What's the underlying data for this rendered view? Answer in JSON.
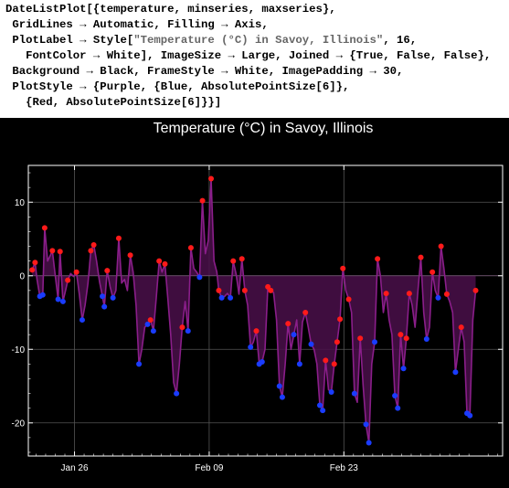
{
  "code": {
    "lines": [
      [
        {
          "t": "DateListPlot[{temperature, minseries, maxseries},"
        }
      ],
      [
        {
          "t": " GridLines → Automatic, Filling → Axis,"
        }
      ],
      [
        {
          "t": " PlotLabel → Style["
        },
        {
          "t": "\"Temperature (°C) in Savoy, Illinois\"",
          "s": true
        },
        {
          "t": ", 16,"
        }
      ],
      [
        {
          "t": "   FontColor → White], ImageSize → Large, Joined → {True, False, False},"
        }
      ],
      [
        {
          "t": " Background → Black, FrameStyle → White, ImagePadding → 30,"
        }
      ],
      [
        {
          "t": " PlotStyle → {Purple, {Blue, AbsolutePointSize[6]},"
        }
      ],
      [
        {
          "t": "   {Red, AbsolutePointSize[6]}}]"
        }
      ]
    ]
  },
  "colors": {
    "background": "#000000",
    "frame": "#ffffff",
    "grid": "#555555",
    "line": "#8a1e8a",
    "filling": "#4a0f4a",
    "min_points": "#1a3cff",
    "max_points": "#ff1a1a",
    "label": "#ffffff"
  },
  "chart_data": {
    "type": "line",
    "title": "Temperature (°C) in Savoy, Illinois",
    "xlabel": "",
    "ylabel": "",
    "x_unit": "days since Jan 26",
    "xlim": [
      -4.8,
      44.5
    ],
    "ylim": [
      -24.5,
      15
    ],
    "filling": "axis",
    "grid": true,
    "x_ticks": [
      {
        "x": 0,
        "label": "Jan 26"
      },
      {
        "x": 14,
        "label": "Feb 09"
      },
      {
        "x": 28,
        "label": "Feb 23"
      }
    ],
    "y_ticks": [
      -20,
      -10,
      0,
      10
    ],
    "series": [
      {
        "name": "temperature",
        "style": "line",
        "points": [
          [
            -4.4,
            0.8
          ],
          [
            -4.1,
            1.8
          ],
          [
            -3.9,
            -0.5
          ],
          [
            -3.6,
            -2.8
          ],
          [
            -3.3,
            -2.6
          ],
          [
            -3.1,
            6.5
          ],
          [
            -2.8,
            2.0
          ],
          [
            -2.5,
            2.8
          ],
          [
            -2.3,
            3.4
          ],
          [
            -2.0,
            0.0
          ],
          [
            -1.7,
            -3.2
          ],
          [
            -1.5,
            3.3
          ],
          [
            -1.2,
            -3.5
          ],
          [
            -0.9,
            -1.8
          ],
          [
            -0.7,
            -0.6
          ],
          [
            -0.4,
            0.3
          ],
          [
            -0.1,
            -0.1
          ],
          [
            0.2,
            0.5
          ],
          [
            0.5,
            -2.5
          ],
          [
            0.8,
            -6.0
          ],
          [
            1.1,
            -4.0
          ],
          [
            1.4,
            -1.0
          ],
          [
            1.7,
            3.4
          ],
          [
            2.0,
            4.2
          ],
          [
            2.3,
            2.0
          ],
          [
            2.6,
            -0.8
          ],
          [
            2.9,
            -2.8
          ],
          [
            3.1,
            -4.2
          ],
          [
            3.4,
            0.7
          ],
          [
            3.7,
            -1.5
          ],
          [
            4.0,
            -3.0
          ],
          [
            4.3,
            -2.0
          ],
          [
            4.6,
            5.1
          ],
          [
            4.9,
            -1.0
          ],
          [
            5.2,
            -0.5
          ],
          [
            5.5,
            -2.0
          ],
          [
            5.8,
            2.8
          ],
          [
            6.1,
            0.5
          ],
          [
            6.4,
            -4.0
          ],
          [
            6.7,
            -12.0
          ],
          [
            7.0,
            -10.0
          ],
          [
            7.3,
            -7.0
          ],
          [
            7.6,
            -6.6
          ],
          [
            7.9,
            -6.0
          ],
          [
            8.2,
            -7.5
          ],
          [
            8.5,
            -3.0
          ],
          [
            8.8,
            2.0
          ],
          [
            9.1,
            0.5
          ],
          [
            9.4,
            1.6
          ],
          [
            9.7,
            -3.0
          ],
          [
            10.0,
            -8.0
          ],
          [
            10.3,
            -14.5
          ],
          [
            10.6,
            -16.0
          ],
          [
            10.9,
            -12.0
          ],
          [
            11.2,
            -7.0
          ],
          [
            11.5,
            -3.5
          ],
          [
            11.8,
            -7.5
          ],
          [
            12.1,
            3.8
          ],
          [
            12.4,
            1.0
          ],
          [
            12.7,
            0.5
          ],
          [
            13.0,
            -0.2
          ],
          [
            13.3,
            10.2
          ],
          [
            13.6,
            3.0
          ],
          [
            13.9,
            4.8
          ],
          [
            14.2,
            13.2
          ],
          [
            14.5,
            2.0
          ],
          [
            14.8,
            0.5
          ],
          [
            15.0,
            -2.0
          ],
          [
            15.3,
            -3.0
          ],
          [
            15.6,
            -2.8
          ],
          [
            15.9,
            -2.4
          ],
          [
            16.2,
            -3.0
          ],
          [
            16.5,
            2.0
          ],
          [
            16.8,
            0.2
          ],
          [
            17.1,
            -2.5
          ],
          [
            17.4,
            2.3
          ],
          [
            17.7,
            -2.0
          ],
          [
            18.0,
            -4.0
          ],
          [
            18.3,
            -9.7
          ],
          [
            18.6,
            -9.0
          ],
          [
            18.9,
            -7.5
          ],
          [
            19.2,
            -12.0
          ],
          [
            19.5,
            -11.7
          ],
          [
            19.8,
            -10.0
          ],
          [
            20.1,
            -1.5
          ],
          [
            20.4,
            -2.0
          ],
          [
            20.7,
            -2.3
          ],
          [
            21.0,
            -6.0
          ],
          [
            21.3,
            -15.0
          ],
          [
            21.6,
            -16.5
          ],
          [
            21.9,
            -12.0
          ],
          [
            22.2,
            -6.5
          ],
          [
            22.5,
            -10.0
          ],
          [
            22.8,
            -8.0
          ],
          [
            23.1,
            -6.0
          ],
          [
            23.4,
            -12.0
          ],
          [
            23.7,
            -6.3
          ],
          [
            24.0,
            -5.0
          ],
          [
            24.3,
            -7.0
          ],
          [
            24.6,
            -9.3
          ],
          [
            24.9,
            -10.0
          ],
          [
            25.2,
            -12.0
          ],
          [
            25.5,
            -17.6
          ],
          [
            25.8,
            -18.3
          ],
          [
            26.1,
            -11.5
          ],
          [
            26.4,
            -15.5
          ],
          [
            26.7,
            -15.8
          ],
          [
            27.0,
            -12.0
          ],
          [
            27.3,
            -9.0
          ],
          [
            27.6,
            -5.9
          ],
          [
            27.9,
            1.0
          ],
          [
            28.2,
            -2.0
          ],
          [
            28.5,
            -3.2
          ],
          [
            28.8,
            -5.0
          ],
          [
            29.1,
            -16.0
          ],
          [
            29.4,
            -17.2
          ],
          [
            29.7,
            -8.5
          ],
          [
            30.0,
            -15.0
          ],
          [
            30.3,
            -20.2
          ],
          [
            30.6,
            -22.7
          ],
          [
            30.9,
            -12.0
          ],
          [
            31.2,
            -9.0
          ],
          [
            31.5,
            2.3
          ],
          [
            31.8,
            0.0
          ],
          [
            32.1,
            -5.0
          ],
          [
            32.4,
            -2.4
          ],
          [
            32.7,
            -6.0
          ],
          [
            33.0,
            -8.0
          ],
          [
            33.3,
            -16.3
          ],
          [
            33.6,
            -18.0
          ],
          [
            33.9,
            -8.0
          ],
          [
            34.2,
            -12.6
          ],
          [
            34.5,
            -8.5
          ],
          [
            34.8,
            -2.4
          ],
          [
            35.1,
            -4.0
          ],
          [
            35.4,
            -7.0
          ],
          [
            35.7,
            -2.0
          ],
          [
            36.0,
            2.5
          ],
          [
            36.3,
            -5.0
          ],
          [
            36.6,
            -8.6
          ],
          [
            36.9,
            -7.0
          ],
          [
            37.2,
            0.5
          ],
          [
            37.5,
            -2.0
          ],
          [
            37.8,
            -3.0
          ],
          [
            38.1,
            4.0
          ],
          [
            38.4,
            1.0
          ],
          [
            38.7,
            -2.5
          ],
          [
            39.0,
            -3.5
          ],
          [
            39.3,
            -5.0
          ],
          [
            39.6,
            -13.1
          ],
          [
            39.9,
            -10.0
          ],
          [
            40.2,
            -7.0
          ],
          [
            40.5,
            -9.0
          ],
          [
            40.8,
            -18.7
          ],
          [
            41.1,
            -19.0
          ],
          [
            41.4,
            -6.0
          ],
          [
            41.7,
            -2.0
          ]
        ]
      },
      {
        "name": "minseries",
        "style": "points",
        "points": [
          [
            -3.6,
            -2.8
          ],
          [
            -3.3,
            -2.6
          ],
          [
            -1.7,
            -3.2
          ],
          [
            -1.2,
            -3.5
          ],
          [
            0.8,
            -6.0
          ],
          [
            2.9,
            -2.8
          ],
          [
            3.1,
            -4.2
          ],
          [
            4.0,
            -3.0
          ],
          [
            6.7,
            -12.0
          ],
          [
            7.6,
            -6.6
          ],
          [
            8.2,
            -7.5
          ],
          [
            10.6,
            -16.0
          ],
          [
            11.8,
            -7.5
          ],
          [
            13.0,
            -0.2
          ],
          [
            15.3,
            -3.0
          ],
          [
            16.2,
            -3.0
          ],
          [
            18.3,
            -9.7
          ],
          [
            19.2,
            -12.0
          ],
          [
            19.5,
            -11.7
          ],
          [
            21.3,
            -15.0
          ],
          [
            21.6,
            -16.5
          ],
          [
            22.8,
            -8.0
          ],
          [
            23.4,
            -12.0
          ],
          [
            24.6,
            -9.3
          ],
          [
            25.5,
            -17.6
          ],
          [
            25.8,
            -18.3
          ],
          [
            26.7,
            -15.8
          ],
          [
            29.1,
            -16.0
          ],
          [
            30.3,
            -20.2
          ],
          [
            30.6,
            -22.7
          ],
          [
            31.2,
            -9.0
          ],
          [
            33.3,
            -16.3
          ],
          [
            33.6,
            -18.0
          ],
          [
            34.2,
            -12.6
          ],
          [
            36.6,
            -8.6
          ],
          [
            37.8,
            -3.0
          ],
          [
            39.6,
            -13.1
          ],
          [
            40.8,
            -18.7
          ],
          [
            41.1,
            -19.0
          ]
        ]
      },
      {
        "name": "maxseries",
        "style": "points",
        "points": [
          [
            -4.4,
            0.8
          ],
          [
            -4.1,
            1.8
          ],
          [
            -3.1,
            6.5
          ],
          [
            -2.3,
            3.4
          ],
          [
            -1.5,
            3.3
          ],
          [
            -0.7,
            -0.6
          ],
          [
            0.2,
            0.5
          ],
          [
            1.7,
            3.4
          ],
          [
            2.0,
            4.2
          ],
          [
            3.4,
            0.7
          ],
          [
            4.6,
            5.1
          ],
          [
            5.8,
            2.8
          ],
          [
            7.9,
            -6.0
          ],
          [
            8.8,
            2.0
          ],
          [
            9.4,
            1.6
          ],
          [
            11.2,
            -7.0
          ],
          [
            12.1,
            3.8
          ],
          [
            13.3,
            10.2
          ],
          [
            14.2,
            13.2
          ],
          [
            15.0,
            -2.0
          ],
          [
            16.5,
            2.0
          ],
          [
            17.4,
            2.3
          ],
          [
            17.7,
            -2.0
          ],
          [
            18.9,
            -7.5
          ],
          [
            20.1,
            -1.5
          ],
          [
            20.4,
            -2.0
          ],
          [
            22.2,
            -6.5
          ],
          [
            24.0,
            -5.0
          ],
          [
            26.1,
            -11.5
          ],
          [
            27.0,
            -12.0
          ],
          [
            27.3,
            -9.0
          ],
          [
            27.6,
            -5.9
          ],
          [
            27.9,
            1.0
          ],
          [
            28.5,
            -3.2
          ],
          [
            29.7,
            -8.5
          ],
          [
            31.5,
            2.3
          ],
          [
            32.4,
            -2.4
          ],
          [
            33.9,
            -8.0
          ],
          [
            34.5,
            -8.5
          ],
          [
            34.8,
            -2.4
          ],
          [
            36.0,
            2.5
          ],
          [
            37.2,
            0.5
          ],
          [
            38.1,
            4.0
          ],
          [
            38.7,
            -2.5
          ],
          [
            40.2,
            -7.0
          ],
          [
            41.7,
            -2.0
          ]
        ]
      }
    ]
  }
}
